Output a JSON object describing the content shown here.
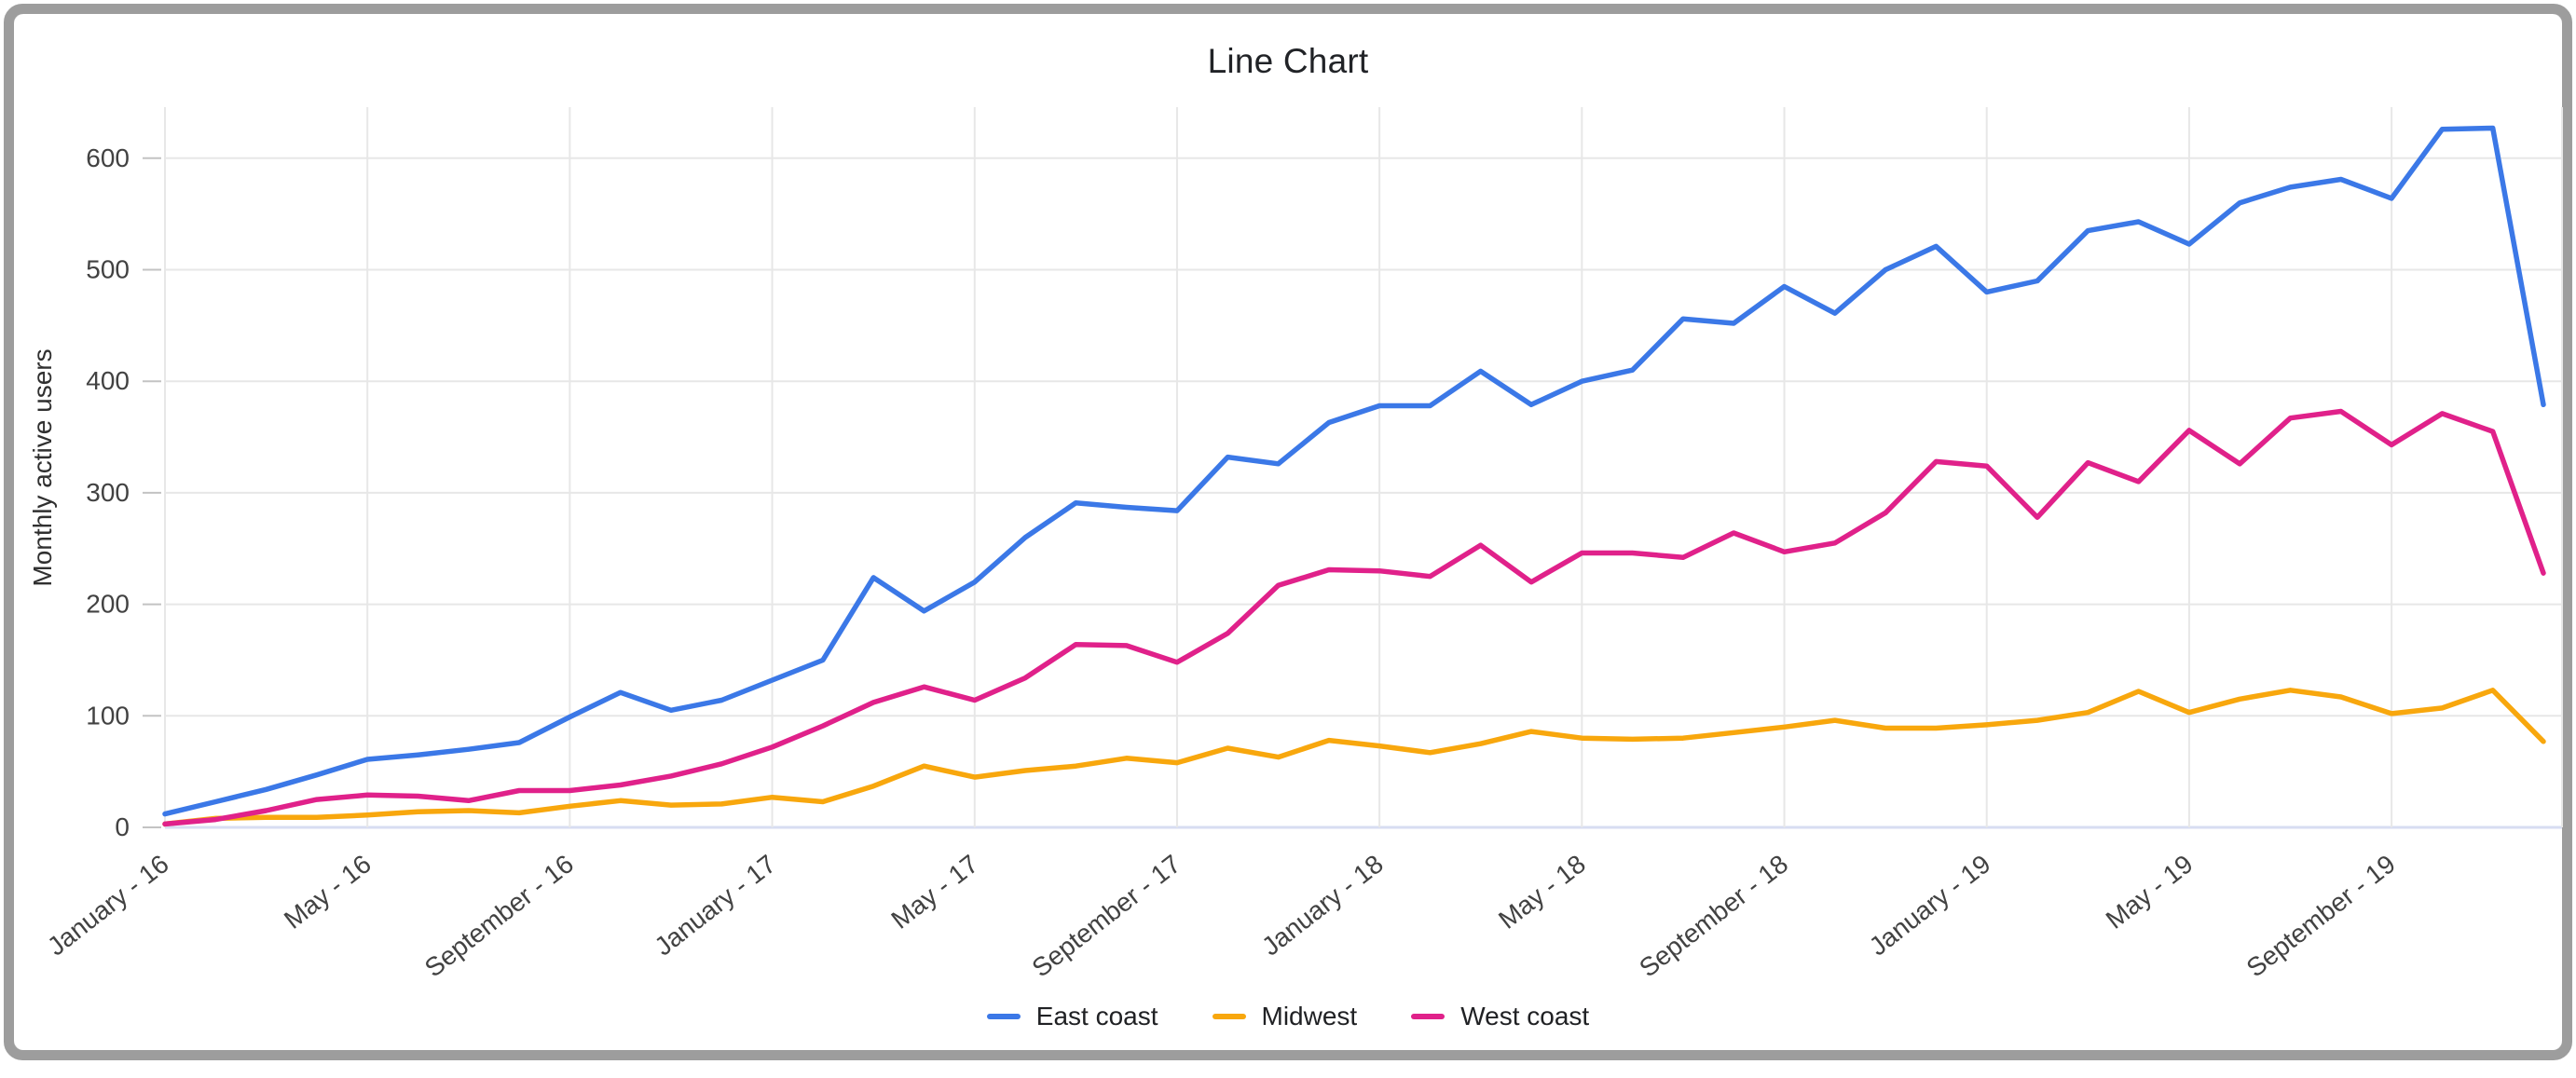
{
  "window": {
    "frame_color": "#9d9d9d",
    "card_background": "#ffffff"
  },
  "chart_data": {
    "type": "line",
    "title": "Line Chart",
    "xlabel": "",
    "ylabel": "Monthly active users",
    "ylim": [
      0,
      645
    ],
    "y_ticks": [
      0,
      100,
      200,
      300,
      400,
      500,
      600
    ],
    "x_tick_labels": [
      "January - 16",
      "May - 16",
      "September - 16",
      "January - 17",
      "May - 17",
      "September - 17",
      "January - 18",
      "May - 18",
      "September - 18",
      "January - 19",
      "May - 19",
      "September - 19"
    ],
    "x_tick_positions": [
      0,
      4,
      8,
      12,
      16,
      20,
      24,
      28,
      32,
      36,
      40,
      44
    ],
    "n_points": 48,
    "grid": true,
    "legend_position": "bottom",
    "background": "#ffffff",
    "gridline_color": "#e7e7e7",
    "baseline_color": "#d7ddf2",
    "tick_text_color": "#424242",
    "title_color": "#212327",
    "series": [
      {
        "name": "East coast",
        "color": "#3b78e7",
        "values": [
          12,
          23,
          34,
          47,
          61,
          65,
          70,
          76,
          99,
          121,
          105,
          114,
          132,
          150,
          224,
          194,
          220,
          260,
          291,
          287,
          284,
          332,
          326,
          363,
          378,
          378,
          409,
          379,
          400,
          410,
          456,
          452,
          485,
          461,
          500,
          521,
          480,
          490,
          535,
          543,
          523,
          560,
          574,
          581,
          564,
          626,
          627,
          379
        ]
      },
      {
        "name": "Midwest",
        "color": "#f8a70d",
        "values": [
          3,
          8,
          9,
          9,
          11,
          14,
          15,
          13,
          19,
          24,
          20,
          21,
          27,
          23,
          37,
          55,
          45,
          51,
          55,
          62,
          58,
          71,
          63,
          78,
          73,
          67,
          75,
          86,
          80,
          79,
          80,
          85,
          90,
          96,
          89,
          89,
          92,
          96,
          103,
          122,
          103,
          115,
          123,
          117,
          102,
          107,
          123,
          77
        ]
      },
      {
        "name": "West coast",
        "color": "#e0218a",
        "values": [
          3,
          7,
          15,
          25,
          29,
          28,
          24,
          33,
          33,
          38,
          46,
          57,
          72,
          91,
          112,
          126,
          114,
          134,
          164,
          163,
          148,
          174,
          217,
          231,
          230,
          225,
          253,
          220,
          246,
          246,
          242,
          264,
          247,
          255,
          282,
          328,
          324,
          278,
          327,
          310,
          356,
          326,
          367,
          373,
          343,
          371,
          355,
          228
        ]
      }
    ]
  }
}
